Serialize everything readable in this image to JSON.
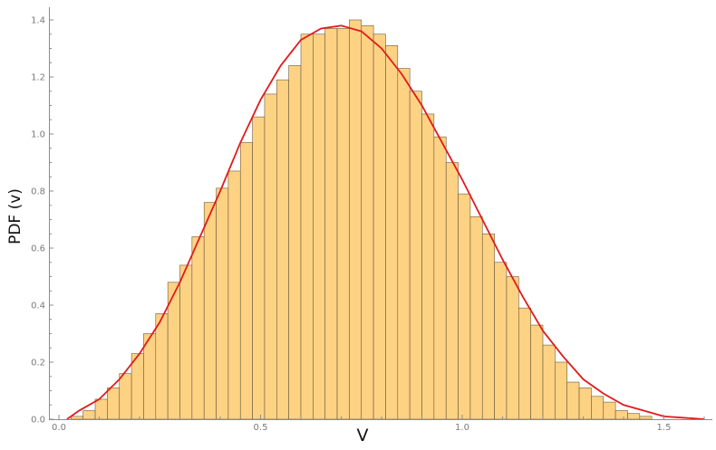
{
  "chart_data": {
    "type": "bar",
    "title": "",
    "xlabel": "V",
    "ylabel": "PDF (v)",
    "xlim": [
      0,
      1.6
    ],
    "ylim": [
      0,
      1.4
    ],
    "x_ticks": [
      0.0,
      0.5,
      1.0,
      1.5
    ],
    "x_tick_labels": [
      "0.0",
      "0.5",
      "1.0",
      "1.5"
    ],
    "y_ticks": [
      0.0,
      0.2,
      0.4,
      0.6,
      0.8,
      1.0,
      1.2,
      1.4
    ],
    "y_tick_labels": [
      "0.0",
      "0.2",
      "0.4",
      "0.6",
      "0.8",
      "1.0",
      "1.2",
      "1.4"
    ],
    "grid": false,
    "legend": "none",
    "histogram": {
      "bin_start": 0.03,
      "bin_width": 0.03,
      "values": [
        0.01,
        0.03,
        0.07,
        0.11,
        0.16,
        0.23,
        0.3,
        0.37,
        0.48,
        0.54,
        0.64,
        0.76,
        0.81,
        0.87,
        0.97,
        1.06,
        1.14,
        1.19,
        1.24,
        1.35,
        1.35,
        1.37,
        1.37,
        1.4,
        1.38,
        1.35,
        1.31,
        1.23,
        1.15,
        1.07,
        0.99,
        0.9,
        0.79,
        0.71,
        0.65,
        0.55,
        0.5,
        0.39,
        0.33,
        0.26,
        0.2,
        0.13,
        0.11,
        0.08,
        0.06,
        0.03,
        0.02,
        0.01
      ],
      "color": "#fed283",
      "edge_color": "#6b5a3c"
    },
    "curve": {
      "x": [
        0.02,
        0.05,
        0.1,
        0.15,
        0.2,
        0.25,
        0.3,
        0.35,
        0.4,
        0.45,
        0.5,
        0.55,
        0.6,
        0.65,
        0.7,
        0.75,
        0.8,
        0.85,
        0.9,
        0.95,
        1.0,
        1.05,
        1.1,
        1.15,
        1.2,
        1.25,
        1.3,
        1.35,
        1.4,
        1.45,
        1.5,
        1.55,
        1.6
      ],
      "y": [
        0.0,
        0.03,
        0.07,
        0.14,
        0.23,
        0.34,
        0.48,
        0.64,
        0.8,
        0.97,
        1.12,
        1.24,
        1.33,
        1.37,
        1.38,
        1.36,
        1.3,
        1.21,
        1.1,
        0.97,
        0.84,
        0.7,
        0.56,
        0.43,
        0.31,
        0.22,
        0.14,
        0.09,
        0.05,
        0.03,
        0.01,
        0.005,
        0.0
      ],
      "color": "#e11b1b"
    },
    "colors": {
      "axis": "#8c8c8c",
      "tick_label": "#7a7a7a",
      "axis_title": "#111111"
    }
  }
}
